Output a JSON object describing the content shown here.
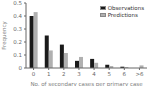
{
  "chart_data": {
    "type": "bar",
    "categories": [
      "0",
      "1",
      "2",
      "3",
      "4",
      "5",
      "6",
      ">6"
    ],
    "series": [
      {
        "name": "Observations",
        "color": "#1a1a1a",
        "values": [
          0.4,
          0.25,
          0.18,
          0.055,
          0.07,
          0.025,
          0.01,
          0.0
        ]
      },
      {
        "name": "Predictions",
        "color": "#b0b0b0",
        "values": [
          0.43,
          0.135,
          0.115,
          0.085,
          0.04,
          0.015,
          0.008,
          0.02
        ]
      }
    ],
    "xlabel": "No. of secondary cases per primary case",
    "ylabel": "Frequency",
    "ylim": [
      0,
      0.5
    ],
    "yticks": [
      0,
      0.1,
      0.2,
      0.3,
      0.4,
      0.5
    ],
    "legend": "upper right",
    "grid": false
  }
}
